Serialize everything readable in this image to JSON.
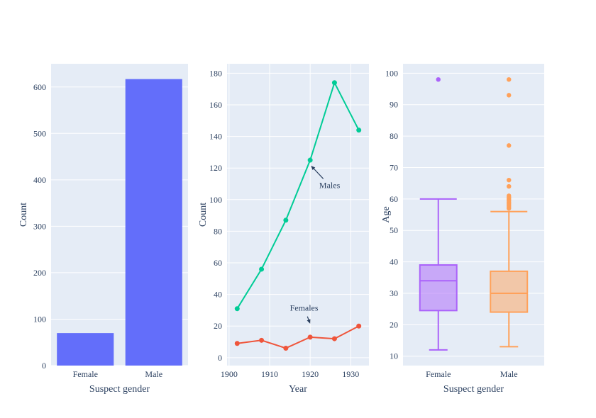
{
  "figure": {
    "background": "#ffffff",
    "plot_bg": "#E5ECF6",
    "grid_color": "#ffffff",
    "text_color": "#2a3f5f"
  },
  "chart_data": [
    {
      "type": "bar",
      "title": "",
      "xlabel": "Suspect gender",
      "ylabel": "Count",
      "categories": [
        "Female",
        "Male"
      ],
      "values": [
        70,
        617
      ],
      "bar_color": "#636EFA",
      "ylim": [
        0,
        650
      ],
      "yticks": [
        0,
        100,
        200,
        300,
        400,
        500,
        600
      ],
      "grid": true,
      "legend": "none"
    },
    {
      "type": "line",
      "title": "",
      "xlabel": "Year",
      "ylabel": "Count",
      "x": [
        1902,
        1908,
        1914,
        1920,
        1926,
        1932
      ],
      "series": [
        {
          "name": "Males",
          "color": "#00CC96",
          "values": [
            31,
            56,
            87,
            125,
            174,
            144
          ]
        },
        {
          "name": "Females",
          "color": "#EF553B",
          "values": [
            9,
            11,
            6,
            13,
            12,
            20
          ]
        }
      ],
      "xlim": [
        1899.5,
        1934.5
      ],
      "ylim": [
        -5,
        186
      ],
      "xticks": [
        1900,
        1910,
        1920,
        1930
      ],
      "yticks": [
        0,
        20,
        40,
        60,
        80,
        100,
        120,
        140,
        160,
        180
      ],
      "grid": true,
      "legend": "none",
      "annotations": [
        {
          "text": "Males",
          "text_x": 1924.8,
          "text_y": 109,
          "tip_x": 1920.2,
          "tip_y": 121.5
        },
        {
          "text": "Females",
          "text_x": 1918.5,
          "text_y": 31.5,
          "tip_x": 1920,
          "tip_y": 21.5
        }
      ]
    },
    {
      "type": "box",
      "title": "",
      "xlabel": "Suspect gender",
      "ylabel": "Age",
      "categories": [
        "Female",
        "Male"
      ],
      "boxes": [
        {
          "label": "Female",
          "color": "#AB63FA",
          "whisker_low": 12,
          "q1": 24.5,
          "median": 34,
          "q3": 39,
          "whisker_high": 60,
          "outliers": [
            98
          ]
        },
        {
          "label": "Male",
          "color": "#FFA15A",
          "whisker_low": 13,
          "q1": 24,
          "median": 30,
          "q3": 37,
          "whisker_high": 56,
          "outliers": [
            57,
            57.5,
            58,
            58.5,
            59,
            59.5,
            60,
            60.5,
            61,
            64,
            66,
            77,
            93,
            98
          ]
        }
      ],
      "ylim": [
        7,
        103
      ],
      "yticks": [
        10,
        20,
        30,
        40,
        50,
        60,
        70,
        80,
        90,
        100
      ],
      "grid": true,
      "legend": "none"
    }
  ]
}
